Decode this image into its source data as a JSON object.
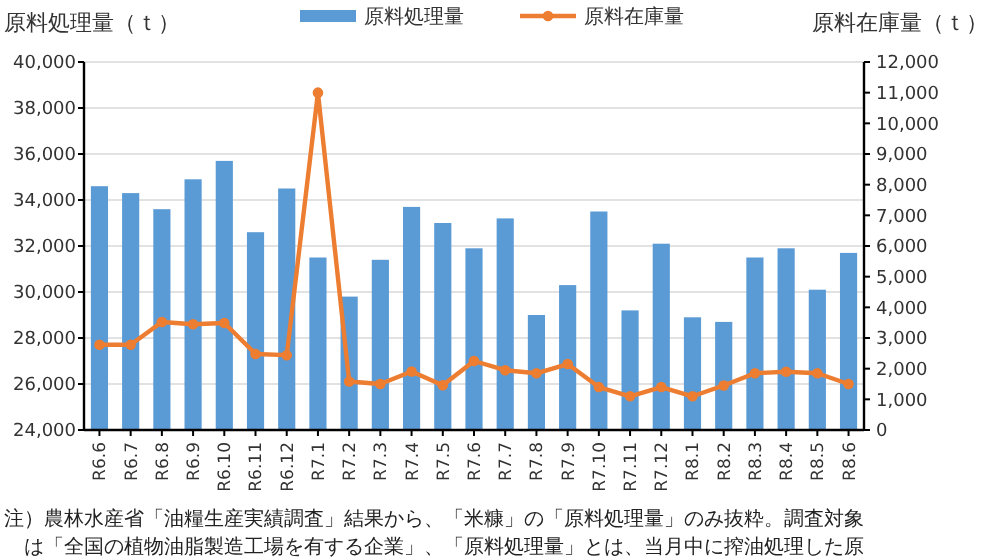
{
  "chart_data": {
    "type": "bar",
    "categories": [
      "R6.6",
      "R6.7",
      "R6.8",
      "R6.9",
      "R6.10",
      "R6.11",
      "R6.12",
      "R7.1",
      "R7.2",
      "R7.3",
      "R7.4",
      "R7.5",
      "R7.6",
      "R7.7",
      "R7.8",
      "R7.9",
      "R7.10",
      "R7.11",
      "R7.12",
      "R8.1",
      "R8.2",
      "R8.3",
      "R8.4",
      "R8.5",
      "R8.6"
    ],
    "series": [
      {
        "name": "原料処理量",
        "color": "#5b9bd5",
        "values": [
          34600,
          34300,
          33600,
          34900,
          35700,
          32600,
          34500,
          31500,
          29800,
          31400,
          33700,
          33000,
          31900,
          33200,
          29000,
          30300,
          33500,
          29200,
          32100,
          28900,
          28700,
          31500,
          31900,
          30100,
          31700
        ]
      },
      {
        "name": "原料在庫量",
        "type": "line",
        "axis": "y2",
        "color": "#ed7d31",
        "values": [
          2780,
          2780,
          3520,
          3450,
          3490,
          2480,
          2440,
          11000,
          1580,
          1500,
          1910,
          1460,
          2250,
          1950,
          1850,
          2150,
          1400,
          1100,
          1400,
          1100,
          1450,
          1850,
          1900,
          1850,
          1500
        ]
      }
    ],
    "ylabel": "原料処理量（ｔ）",
    "y2label": "原料在庫量（ｔ）",
    "ylim": [
      24000,
      40000
    ],
    "yticks": [
      {
        "value": 24000,
        "label": "24,000"
      },
      {
        "value": 26000,
        "label": "26,000"
      },
      {
        "value": 28000,
        "label": "28,000"
      },
      {
        "value": 30000,
        "label": "30,000"
      },
      {
        "value": 32000,
        "label": "32,000"
      },
      {
        "value": 34000,
        "label": "34,000"
      },
      {
        "value": 36000,
        "label": "36,000"
      },
      {
        "value": 38000,
        "label": "38,000"
      },
      {
        "value": 40000,
        "label": "40,000"
      }
    ],
    "y2lim": [
      0,
      12000
    ],
    "y2ticks": [
      0,
      {
        "value": 1000,
        "label": "1,000"
      },
      {
        "value": 2000,
        "label": "2,000"
      },
      {
        "value": 3000,
        "label": "3,000"
      },
      {
        "value": 4000,
        "label": "4,000"
      },
      {
        "value": 5000,
        "label": "5,000"
      },
      {
        "value": 6000,
        "label": "6,000"
      },
      {
        "value": 7000,
        "label": "7,000"
      },
      {
        "value": 8000,
        "label": "8,000"
      },
      {
        "value": 9000,
        "label": "9,000"
      },
      {
        "value": 10000,
        "label": "10,000"
      },
      {
        "value": 11000,
        "label": "11,000"
      },
      {
        "value": 12000,
        "label": "12,000"
      }
    ],
    "grid": "y",
    "legend": "top",
    "marker": "circle",
    "annotations": [
      "注）農林水産省「油糧生産実績調査」結果から、「米糠」の「原料処理量」のみ抜粋。調査対象",
      "　は「全国の植物油脂製造工場を有する企業」、「原料処理量」とは、当月中に搾油処理した原"
    ]
  }
}
